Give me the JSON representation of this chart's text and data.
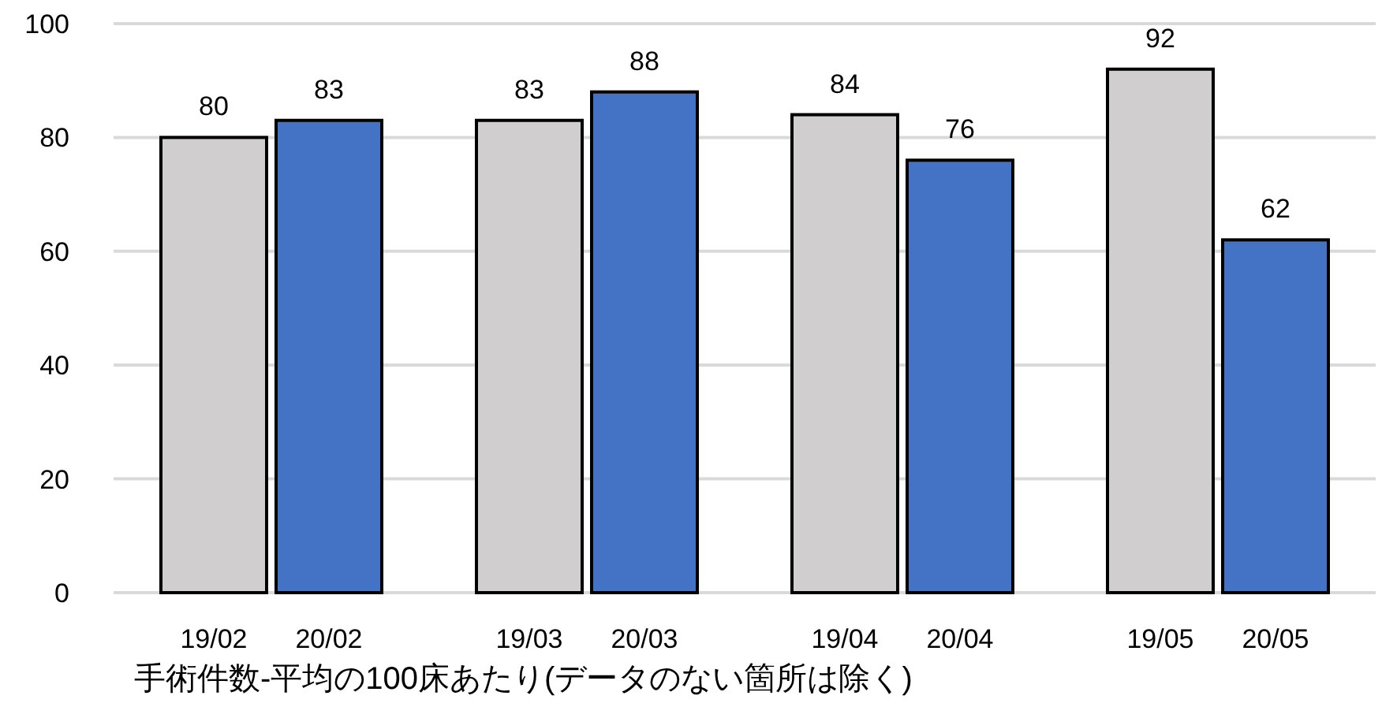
{
  "chart_data": {
    "type": "bar",
    "xlabel": "手術件数-平均の100床あたり(データのない箇所は除く)",
    "categories": [
      "19/02",
      "20/02",
      "19/03",
      "20/03",
      "19/04",
      "20/04",
      "19/05",
      "20/05"
    ],
    "values": [
      80,
      83,
      83,
      88,
      84,
      76,
      92,
      62
    ],
    "colors": [
      "#d0cece",
      "#4472c4",
      "#d0cece",
      "#4472c4",
      "#d0cece",
      "#4472c4",
      "#d0cece",
      "#4472c4"
    ],
    "ylim": [
      0,
      100
    ],
    "yticks": [
      0,
      20,
      40,
      60,
      80,
      100
    ],
    "grid": "y",
    "data_labels": true
  }
}
